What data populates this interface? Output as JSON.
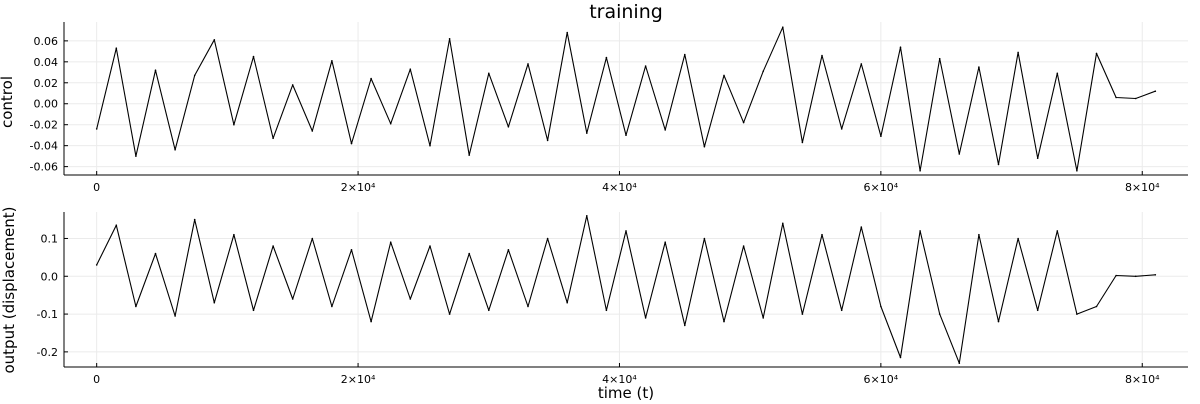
{
  "chart_data": [
    {
      "type": "line",
      "title": "training",
      "xlabel": "",
      "ylabel": "control",
      "xlim": [
        -2500,
        83500
      ],
      "ylim": [
        -0.068,
        0.078
      ],
      "grid": true,
      "x_ticks": [
        0,
        20000,
        40000,
        60000,
        80000
      ],
      "x_tick_labels": [
        "0",
        "2×10⁴",
        "4×10⁴",
        "6×10⁴",
        "8×10⁴"
      ],
      "y_ticks": [
        0.06,
        0.04,
        0.02,
        0.0,
        -0.02,
        -0.04,
        -0.06
      ],
      "y_tick_labels": [
        "0.06",
        "0.04",
        "0.02",
        "0.00",
        "-0.02",
        "-0.04",
        "-0.06"
      ],
      "series": [
        {
          "x": [
            0,
            1500,
            3000,
            4500,
            6000,
            7500,
            9000,
            10500,
            12000,
            13500,
            15000,
            16500,
            18000,
            19500,
            21000,
            22500,
            24000,
            25500,
            27000,
            28500,
            30000,
            31500,
            33000,
            34500,
            36000,
            37500,
            39000,
            40500,
            42000,
            43500,
            45000,
            46500,
            48000,
            49500,
            51000,
            52500,
            54000,
            55500,
            57000,
            58500,
            60000,
            61500,
            63000,
            64500,
            66000,
            67500,
            69000,
            70500,
            72000,
            73500,
            75000,
            76500,
            78000,
            79500,
            81000
          ],
          "values": [
            -0.024,
            0.053,
            -0.05,
            0.032,
            -0.044,
            0.027,
            0.061,
            -0.02,
            0.045,
            -0.033,
            0.018,
            -0.026,
            0.041,
            -0.038,
            0.024,
            -0.019,
            0.033,
            -0.04,
            0.062,
            -0.049,
            0.029,
            -0.022,
            0.038,
            -0.035,
            0.068,
            -0.028,
            0.044,
            -0.03,
            0.036,
            -0.025,
            0.047,
            -0.041,
            0.027,
            -0.018,
            0.031,
            0.073,
            -0.037,
            0.046,
            -0.024,
            0.038,
            -0.031,
            0.054,
            -0.064,
            0.043,
            -0.048,
            0.035,
            -0.058,
            0.049,
            -0.052,
            0.029,
            -0.064,
            0.048,
            0.006,
            0.005,
            0.012
          ]
        }
      ]
    },
    {
      "type": "line",
      "xlabel": "time (t)",
      "ylabel": "output (displacement)",
      "xlim": [
        -2500,
        83500
      ],
      "ylim": [
        -0.24,
        0.17
      ],
      "grid": true,
      "x_ticks": [
        0,
        20000,
        40000,
        60000,
        80000
      ],
      "x_tick_labels": [
        "0",
        "2×10⁴",
        "4×10⁴",
        "6×10⁴",
        "8×10⁴"
      ],
      "y_ticks": [
        0.1,
        0.0,
        -0.1,
        -0.2
      ],
      "y_tick_labels": [
        "0.1",
        "0.0",
        "-0.1",
        "-0.2"
      ],
      "series": [
        {
          "x": [
            0,
            1500,
            3000,
            4500,
            6000,
            7500,
            9000,
            10500,
            12000,
            13500,
            15000,
            16500,
            18000,
            19500,
            21000,
            22500,
            24000,
            25500,
            27000,
            28500,
            30000,
            31500,
            33000,
            34500,
            36000,
            37500,
            39000,
            40500,
            42000,
            43500,
            45000,
            46500,
            48000,
            49500,
            51000,
            52500,
            54000,
            55500,
            57000,
            58500,
            60000,
            61500,
            63000,
            64500,
            66000,
            67500,
            69000,
            70500,
            72000,
            73500,
            75000,
            76500,
            78000,
            79500,
            81000
          ],
          "values": [
            0.03,
            0.135,
            -0.08,
            0.06,
            -0.105,
            0.15,
            -0.07,
            0.11,
            -0.09,
            0.08,
            -0.06,
            0.1,
            -0.08,
            0.07,
            -0.12,
            0.09,
            -0.06,
            0.08,
            -0.1,
            0.06,
            -0.09,
            0.07,
            -0.08,
            0.1,
            -0.07,
            0.16,
            -0.09,
            0.12,
            -0.11,
            0.09,
            -0.13,
            0.1,
            -0.12,
            0.08,
            -0.11,
            0.14,
            -0.1,
            0.11,
            -0.09,
            0.13,
            -0.08,
            -0.215,
            0.12,
            -0.1,
            -0.23,
            0.11,
            -0.12,
            0.1,
            -0.09,
            0.12,
            -0.1,
            -0.08,
            0.002,
            0.0,
            0.004
          ]
        }
      ]
    }
  ]
}
